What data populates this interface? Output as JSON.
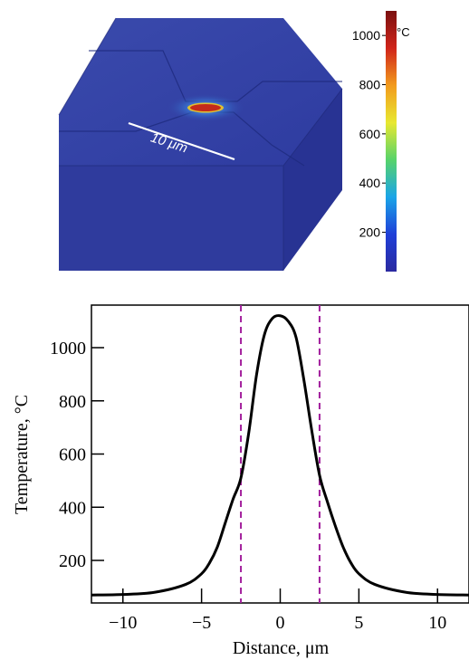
{
  "thermal_map": {
    "scale_bar_label": "10 μm",
    "colorbar": {
      "unit": "°C",
      "ticks": [
        {
          "label": "1000",
          "value": 1000
        },
        {
          "label": "800",
          "value": 800
        },
        {
          "label": "600",
          "value": 600
        },
        {
          "label": "400",
          "value": 400
        },
        {
          "label": "200",
          "value": 200
        }
      ],
      "min_value": 40,
      "max_value": 1100,
      "colors": [
        "#2b2aa0",
        "#1f3fd8",
        "#1aa5e8",
        "#57d36a",
        "#e8e830",
        "#f29b1d",
        "#d0241a",
        "#7a1010"
      ]
    },
    "block_color": "#2f3a9c",
    "hotspot_color": "#c42a1a"
  },
  "chart_data": {
    "type": "line",
    "xlabel": "Distance, μm",
    "ylabel": "Temperature, °C",
    "xlim": [
      -12,
      12
    ],
    "ylim": [
      40,
      1160
    ],
    "x_ticks": [
      -10,
      -5,
      0,
      5,
      10
    ],
    "x_tick_labels": [
      "−10",
      "−5",
      "0",
      "5",
      "10"
    ],
    "y_ticks": [
      200,
      400,
      600,
      800,
      1000
    ],
    "y_tick_labels": [
      "200",
      "400",
      "600",
      "800",
      "1000"
    ],
    "series": [
      {
        "color": "#000000",
        "x": [
          -12,
          -10,
          -8,
          -6,
          -5,
          -4.5,
          -4,
          -3.5,
          -3,
          -2.5,
          -2,
          -1.5,
          -1,
          -0.5,
          0,
          0.5,
          1,
          1.5,
          2,
          2.5,
          3,
          3.5,
          4,
          4.5,
          5,
          6,
          8,
          10,
          12
        ],
        "y": [
          70,
          72,
          80,
          110,
          150,
          190,
          250,
          340,
          430,
          510,
          680,
          900,
          1050,
          1110,
          1120,
          1100,
          1040,
          880,
          690,
          520,
          420,
          330,
          250,
          190,
          150,
          110,
          80,
          72,
          70
        ]
      }
    ],
    "vlines": [
      -2.5,
      2.5
    ],
    "vline_color": "#a21f9c",
    "grid": false
  }
}
